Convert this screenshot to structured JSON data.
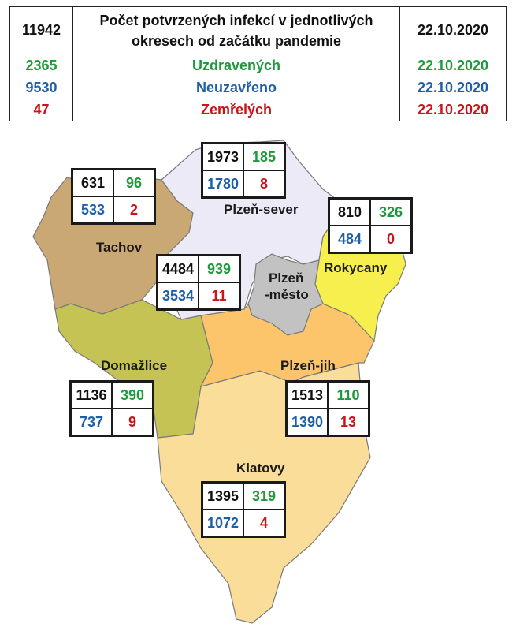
{
  "summary": {
    "total": "11942",
    "title_line1": "Počet potvrzených infekcí v jednotlivých",
    "title_line2": "okresech od začátku pandemie",
    "date": "22.10.2020",
    "rows": [
      {
        "value": "2365",
        "label": "Uzdravených",
        "date": "22.10.2020",
        "color": "#1e9a3c"
      },
      {
        "value": "9530",
        "label": "Neuzavřeno",
        "date": "22.10.2020",
        "color": "#1f5fa6"
      },
      {
        "value": "47",
        "label": "Zemřelých",
        "date": "22.10.2020",
        "color": "#c9141a"
      }
    ]
  },
  "region_colors": {
    "Tachov": "#c9a874",
    "Plzeň-sever": "#eceaf7",
    "Plzeň-město": "#c2c2c2",
    "Rokycany": "#f7ef4e",
    "Domažlice": "#c4c353",
    "Plzeň-jih": "#fcc56b",
    "Klatovy": "#f9dd98"
  },
  "districts": [
    {
      "name": "Tachov",
      "label": "Tachov",
      "total": "631",
      "recovered": "96",
      "open": "533",
      "deaths": "2"
    },
    {
      "name": "Plzeň-sever",
      "label": "Plzeň-sever",
      "total": "1973",
      "recovered": "185",
      "open": "1780",
      "deaths": "8"
    },
    {
      "name": "Rokycany",
      "label": "Rokycany",
      "total": "810",
      "recovered": "326",
      "open": "484",
      "deaths": "0"
    },
    {
      "name": "Plzeň-město",
      "label1": "Plzeň",
      "label2": "-město",
      "total": "4484",
      "recovered": "939",
      "open": "3534",
      "deaths": "11"
    },
    {
      "name": "Domažlice",
      "label": "Domažlice",
      "total": "1136",
      "recovered": "390",
      "open": "737",
      "deaths": "9"
    },
    {
      "name": "Plzeň-jih",
      "label": "Plzeň-jih",
      "total": "1513",
      "recovered": "110",
      "open": "1390",
      "deaths": "13"
    },
    {
      "name": "Klatovy",
      "label": "Klatovy",
      "total": "1395",
      "recovered": "319",
      "open": "1072",
      "deaths": "4"
    }
  ]
}
